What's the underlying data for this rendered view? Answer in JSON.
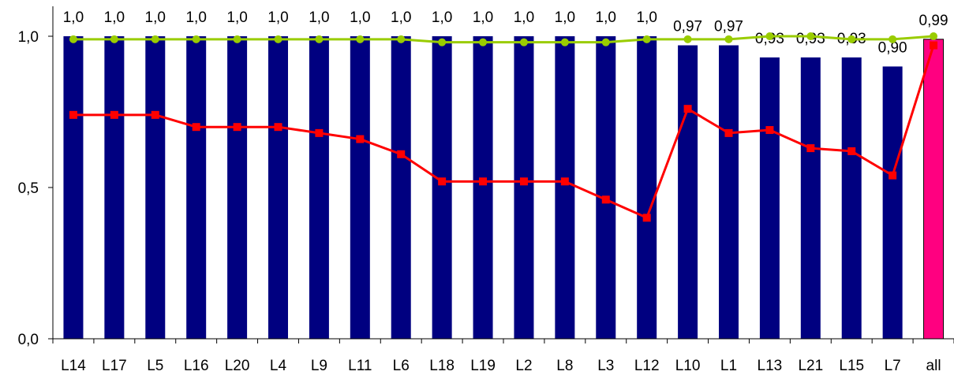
{
  "chart_data": {
    "type": "bar",
    "categories": [
      "L14",
      "L17",
      "L5",
      "L16",
      "L20",
      "L4",
      "L9",
      "L11",
      "L6",
      "L18",
      "L19",
      "L2",
      "L8",
      "L3",
      "L12",
      "L10",
      "L1",
      "L13",
      "L21",
      "L15",
      "L7",
      "all"
    ],
    "series": [
      {
        "kind": "bar",
        "values": [
          1.0,
          1.0,
          1.0,
          1.0,
          1.0,
          1.0,
          1.0,
          1.0,
          1.0,
          1.0,
          1.0,
          1.0,
          1.0,
          1.0,
          1.0,
          0.97,
          0.97,
          0.93,
          0.93,
          0.93,
          0.9,
          0.99
        ],
        "data_labels": [
          "1,0",
          "1,0",
          "1,0",
          "1,0",
          "1,0",
          "1,0",
          "1,0",
          "1,0",
          "1,0",
          "1,0",
          "1,0",
          "1,0",
          "1,0",
          "1,0",
          "1,0",
          "0,97",
          "0,97",
          "0,93",
          "0,93",
          "0,93",
          "0,90",
          "0,99"
        ],
        "color": "#000080",
        "highlight_color": "#ff0080",
        "highlight_index": 21
      },
      {
        "kind": "line",
        "marker": "circle",
        "color": "#99cc00",
        "values": [
          0.99,
          0.99,
          0.99,
          0.99,
          0.99,
          0.99,
          0.99,
          0.99,
          0.99,
          0.98,
          0.98,
          0.98,
          0.98,
          0.98,
          0.99,
          0.99,
          0.99,
          1.0,
          1.0,
          0.99,
          0.99,
          1.0
        ]
      },
      {
        "kind": "line",
        "marker": "square",
        "color": "#ff0000",
        "values": [
          0.74,
          0.74,
          0.74,
          0.7,
          0.7,
          0.7,
          0.68,
          0.66,
          0.61,
          0.52,
          0.52,
          0.52,
          0.52,
          0.46,
          0.4,
          0.76,
          0.68,
          0.69,
          0.63,
          0.62,
          0.54,
          0.97
        ]
      }
    ],
    "y_ticks": [
      "0,0",
      "0,5",
      "1,0"
    ],
    "y_tick_values": [
      0.0,
      0.5,
      1.0
    ],
    "ylim": [
      0.0,
      1.0
    ],
    "grid": false,
    "legend": "none"
  }
}
